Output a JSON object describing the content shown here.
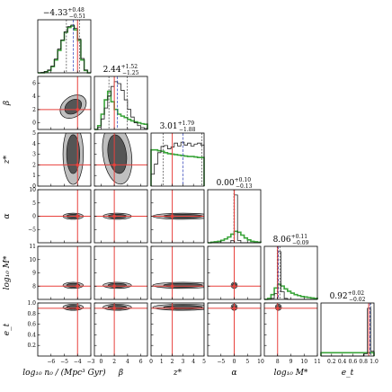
{
  "colors": {
    "background": "#ffffff",
    "axis": "#000000",
    "truth_line": "#e8413c",
    "prior_hist": "#3aa53a",
    "posterior_hist": "#222222",
    "median_line": "#2a3db8",
    "quantile_line": "#444444",
    "contour_fill": "#555555",
    "contour_line": "#111111"
  },
  "chart_data": {
    "type": "corner",
    "parameters": [
      {
        "id": "log10_n0",
        "xlabel": "log₁₀ n₀ / (Mpc³ Gyr)",
        "ylabel": "",
        "range": [
          -7,
          -3
        ],
        "ticks": [
          -6,
          -5,
          -4,
          -3
        ],
        "tick_labels": [
          "−6",
          "−5",
          "−4",
          "−3"
        ],
        "truth": -4,
        "title": "−4.33",
        "title_sup": "+0.48",
        "title_sub": "−0.51",
        "median": -4.33,
        "q_low": -4.84,
        "q_high": -3.85,
        "posterior_bins": [
          0.0,
          0.01,
          0.03,
          0.06,
          0.14,
          0.29,
          0.5,
          0.69,
          0.86,
          0.97,
          1.0,
          0.93,
          0.71,
          0.3,
          0.06,
          0.0
        ],
        "prior_bins": [
          0.0,
          0.0,
          0.02,
          0.05,
          0.13,
          0.27,
          0.47,
          0.68,
          0.85,
          0.95,
          0.98,
          0.9,
          0.68,
          0.27,
          0.05,
          0.0
        ]
      },
      {
        "id": "beta",
        "xlabel": "β",
        "ylabel": "β",
        "range": [
          -1,
          7
        ],
        "ticks": [
          0,
          2,
          4,
          6
        ],
        "tick_labels": [
          "0",
          "2",
          "4",
          "6"
        ],
        "truth": 2,
        "title": "2.44",
        "title_sup": "+1.52",
        "title_sub": "−1.25",
        "median": 2.44,
        "q_low": 1.19,
        "q_high": 3.96,
        "posterior_bins": [
          0.0,
          0.05,
          0.22,
          0.45,
          0.7,
          0.9,
          1.0,
          0.96,
          0.82,
          0.62,
          0.42,
          0.26,
          0.14,
          0.08,
          0.04,
          0.02
        ],
        "prior_bins": [
          0.0,
          0.08,
          0.32,
          0.62,
          0.8,
          0.58,
          0.42,
          0.32,
          0.28,
          0.25,
          0.21,
          0.18,
          0.16,
          0.14,
          0.12,
          0.11
        ]
      },
      {
        "id": "z_star",
        "xlabel": "z*",
        "ylabel": "z*",
        "range": [
          0,
          5
        ],
        "ticks": [
          0,
          1,
          2,
          3,
          4,
          5
        ],
        "tick_labels": [
          "0",
          "1",
          "2",
          "3",
          "4",
          "5"
        ],
        "truth": 2,
        "title": "3.01",
        "title_sup": "+1.79",
        "title_sub": "−1.88",
        "median": 3.01,
        "q_low": 1.13,
        "q_high": 4.8,
        "posterior_bins": [
          0.25,
          0.46,
          0.7,
          0.83,
          0.85,
          0.78,
          0.82,
          0.9,
          0.84,
          0.92,
          0.86,
          0.9,
          0.84,
          0.88,
          0.9,
          0.86
        ],
        "prior_bins": [
          0.76,
          0.76,
          0.74,
          0.73,
          0.7,
          0.68,
          0.67,
          0.66,
          0.65,
          0.64,
          0.63,
          0.62,
          0.62,
          0.61,
          0.6,
          0.6
        ]
      },
      {
        "id": "alpha",
        "xlabel": "α",
        "ylabel": "α",
        "range": [
          -10,
          10
        ],
        "ticks": [
          -5,
          0,
          5,
          10
        ],
        "tick_labels": [
          "−5",
          "0",
          "5",
          "10"
        ],
        "truth": 0,
        "title": "0.00",
        "title_sup": "+0.10",
        "title_sub": "−0.13",
        "median": 0.0,
        "q_low": -0.13,
        "q_high": 0.1,
        "posterior_bins": [
          0.0,
          0.0,
          0.0,
          0.0,
          0.0,
          0.0,
          0.0,
          0.05,
          1.0,
          0.05,
          0.0,
          0.0,
          0.0,
          0.0,
          0.0,
          0.0
        ],
        "prior_bins": [
          0.0,
          0.01,
          0.02,
          0.03,
          0.05,
          0.08,
          0.12,
          0.18,
          0.24,
          0.22,
          0.16,
          0.1,
          0.06,
          0.03,
          0.02,
          0.01
        ]
      },
      {
        "id": "log10_M_star",
        "xlabel": "log₁₀ M*",
        "ylabel": "log₁₀ M*",
        "range": [
          7,
          11
        ],
        "ticks": [
          8,
          9,
          10,
          11
        ],
        "tick_labels": [
          "8",
          "9",
          "10",
          "11"
        ],
        "truth": 8,
        "title": "8.06",
        "title_sup": "+0.11",
        "title_sub": "−0.09",
        "median": 8.06,
        "q_low": 7.97,
        "q_high": 8.17,
        "posterior_bins": [
          0.0,
          0.0,
          0.02,
          0.12,
          1.0,
          0.16,
          0.02,
          0.0,
          0.0,
          0.0,
          0.0,
          0.0,
          0.0,
          0.0,
          0.0,
          0.0
        ],
        "prior_bins": [
          0.0,
          0.02,
          0.1,
          0.24,
          0.32,
          0.28,
          0.22,
          0.17,
          0.13,
          0.1,
          0.08,
          0.06,
          0.05,
          0.04,
          0.03,
          0.02
        ]
      },
      {
        "id": "e_t",
        "xlabel": "e_t",
        "ylabel": "e_t",
        "range": [
          0,
          1
        ],
        "ticks": [
          0.2,
          0.4,
          0.6,
          0.8,
          1.0
        ],
        "tick_labels": [
          "0.2",
          "0.4",
          "0.6",
          "0.8",
          "1.0"
        ],
        "truth": 0.9,
        "title": "0.92",
        "title_sup": "+0.02",
        "title_sub": "−0.02",
        "median": 0.92,
        "q_low": 0.9,
        "q_high": 0.94,
        "posterior_bins": [
          0.0,
          0.0,
          0.0,
          0.0,
          0.0,
          0.0,
          0.0,
          0.0,
          0.0,
          0.0,
          0.0,
          0.0,
          0.0,
          0.05,
          1.0,
          0.1
        ],
        "prior_bins": [
          0.07,
          0.07,
          0.07,
          0.07,
          0.07,
          0.07,
          0.07,
          0.07,
          0.07,
          0.07,
          0.07,
          0.07,
          0.07,
          0.07,
          0.07,
          0.07
        ]
      }
    ]
  }
}
